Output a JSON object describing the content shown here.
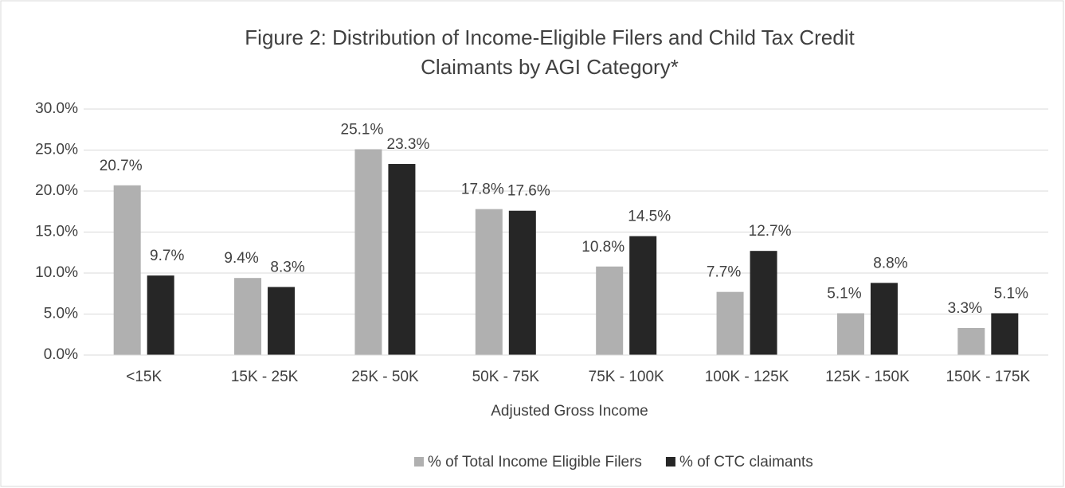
{
  "chart_data": {
    "type": "bar",
    "title": [
      "Figure 2: Distribution of Income-Eligible Filers and Child Tax Credit",
      "Claimants by AGI Category*"
    ],
    "x_label": "Adjusted Gross Income",
    "categories": [
      "<15K",
      "15K - 25K",
      "25K - 50K",
      "50K - 75K",
      "75K - 100K",
      "100K - 125K",
      "125K - 150K",
      "150K - 175K"
    ],
    "series": [
      {
        "name": "% of Total Income Eligible Filers",
        "color": "#b0b0b0",
        "values": [
          20.7,
          9.4,
          25.1,
          17.8,
          10.8,
          7.7,
          5.1,
          3.3
        ],
        "value_labels": [
          "20.7%",
          "9.4%",
          "25.1%",
          "17.8%",
          "10.8%",
          "7.7%",
          "5.1%",
          "3.3%"
        ]
      },
      {
        "name": "% of CTC claimants",
        "color": "#262626",
        "values": [
          9.7,
          8.3,
          23.3,
          17.6,
          14.5,
          12.7,
          8.8,
          5.1
        ],
        "value_labels": [
          "9.7%",
          "8.3%",
          "23.3%",
          "17.6%",
          "14.5%",
          "12.7%",
          "8.8%",
          "5.1%"
        ]
      }
    ],
    "ylim": [
      0,
      30
    ],
    "yticks": [
      {
        "value": 0,
        "label": "0.0%"
      },
      {
        "value": 5,
        "label": "5.0%"
      },
      {
        "value": 10,
        "label": "10.0%"
      },
      {
        "value": 15,
        "label": "15.0%"
      },
      {
        "value": 20,
        "label": "20.0%"
      },
      {
        "value": 25,
        "label": "25.0%"
      },
      {
        "value": 30,
        "label": "30.0%"
      }
    ],
    "grid": true,
    "legend": "bottom"
  }
}
